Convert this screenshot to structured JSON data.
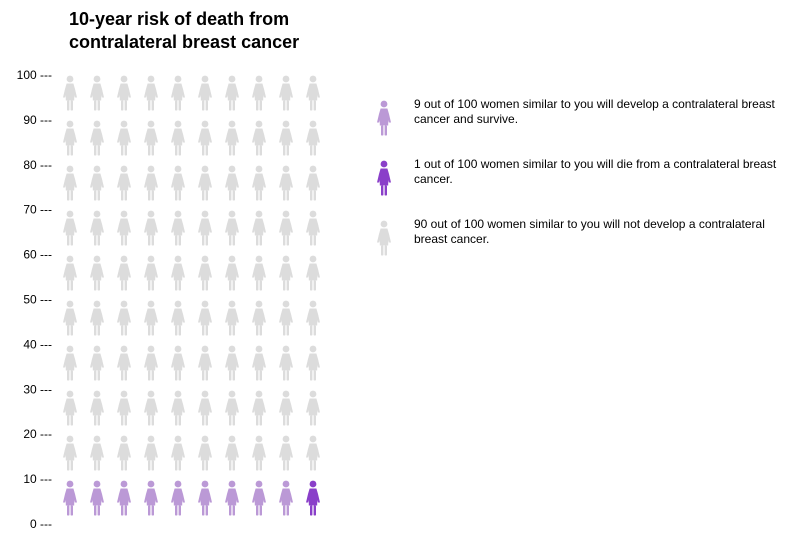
{
  "chart_data": {
    "type": "icon-array",
    "title": "10-year risk of death from contralateral breast cancer",
    "total": 100,
    "columns": 10,
    "y_ticks": [
      "100 ---",
      "90 ---",
      "80 ---",
      "70 ---",
      "60 ---",
      "50 ---",
      "40 ---",
      "30 ---",
      "20 ---",
      "10 ---",
      "0 ---"
    ],
    "groups": [
      {
        "count": 9,
        "color": "#bb99d6",
        "icon": "woman-icon",
        "label": "9 out of 100 women similar to you will develop a contralateral breast cancer and survive."
      },
      {
        "count": 1,
        "color": "#8a3fc9",
        "icon": "woman-icon",
        "label": "1 out of 100 women similar to you will die from a contralateral breast cancer."
      },
      {
        "count": 90,
        "color": "#dcdcdc",
        "icon": "woman-icon",
        "label": "90 out of 100 women similar to you will not develop a contralateral breast cancer."
      }
    ]
  }
}
